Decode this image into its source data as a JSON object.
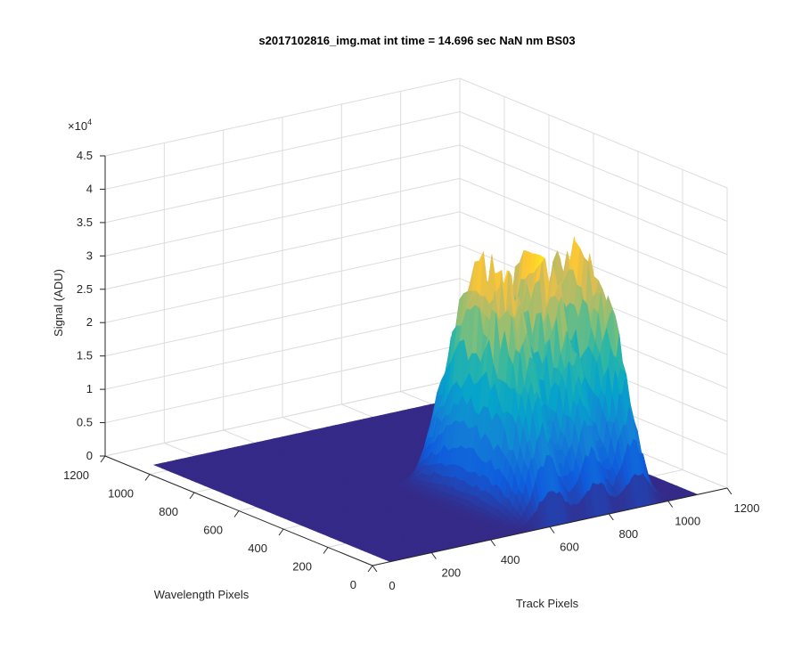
{
  "figure": {
    "title": "s2017102816_img.mat int time = 14.696 sec  NaN nm BS03"
  },
  "chart_data": {
    "type": "surface",
    "title": "s2017102816_img.mat int time = 14.696 sec  NaN nm BS03",
    "xlabel": "Track Pixels",
    "ylabel": "Wavelength Pixels",
    "zlabel": "Signal (ADU)",
    "xlim": [
      0,
      1200
    ],
    "ylim": [
      0,
      1200
    ],
    "zlim": [
      0,
      45000
    ],
    "z_exponent_label": "×10",
    "z_exponent_power": "4",
    "x_ticks": [
      0,
      200,
      400,
      600,
      800,
      1000,
      1200
    ],
    "x_tick_labels": [
      "0",
      "200",
      "400",
      "600",
      "800",
      "1000",
      "1200"
    ],
    "y_ticks": [
      0,
      200,
      400,
      600,
      800,
      1000,
      1200
    ],
    "y_tick_labels": [
      "0",
      "200",
      "400",
      "600",
      "800",
      "1000",
      "1200"
    ],
    "z_ticks": [
      0,
      5000,
      10000,
      15000,
      20000,
      25000,
      30000,
      35000,
      40000,
      45000
    ],
    "z_tick_labels": [
      "0",
      "0.5",
      "1",
      "1.5",
      "2",
      "2.5",
      "3",
      "3.5",
      "4",
      "4.5"
    ],
    "grid": true,
    "colormap": "parula",
    "floor_color": "#352a87",
    "peak_color": "#f9fb0e",
    "ridges": [
      {
        "track_center": 620,
        "track_width": 130,
        "wavelength_range": [
          0,
          560
        ],
        "peak_signal": 34000
      },
      {
        "track_center": 770,
        "track_width": 110,
        "wavelength_range": [
          0,
          560
        ],
        "peak_signal": 33000
      },
      {
        "track_center": 910,
        "track_width": 110,
        "wavelength_range": [
          0,
          560
        ],
        "peak_signal": 33500
      }
    ]
  }
}
